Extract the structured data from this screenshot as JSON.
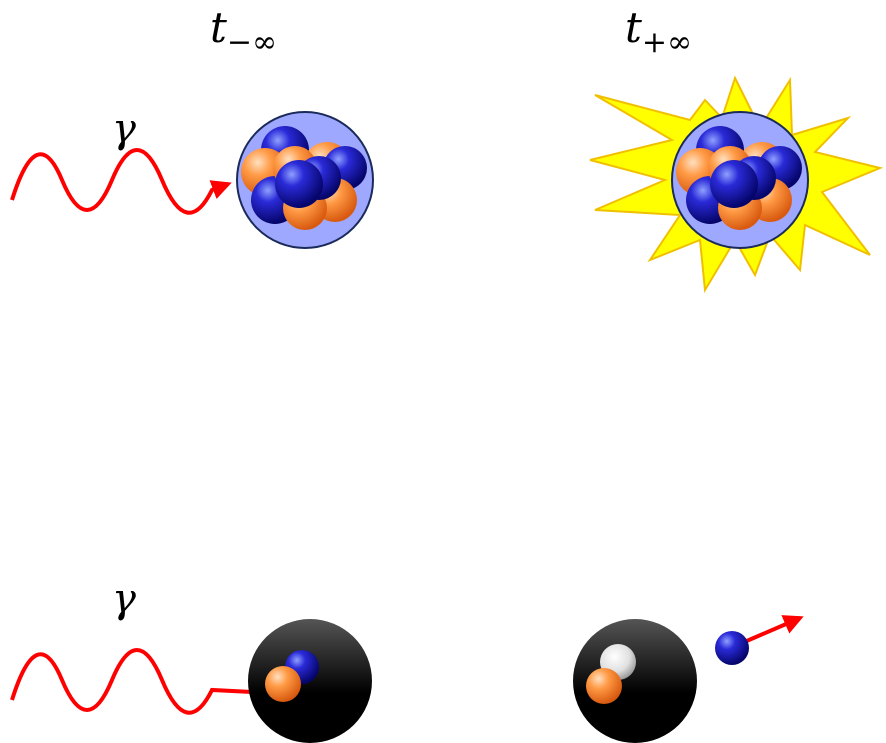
{
  "time_labels": [
    {
      "main": "t",
      "sub": "−∞"
    },
    {
      "main": "t",
      "sub": "+∞"
    }
  ],
  "photon_labels": [
    "γ",
    "γ"
  ]
}
